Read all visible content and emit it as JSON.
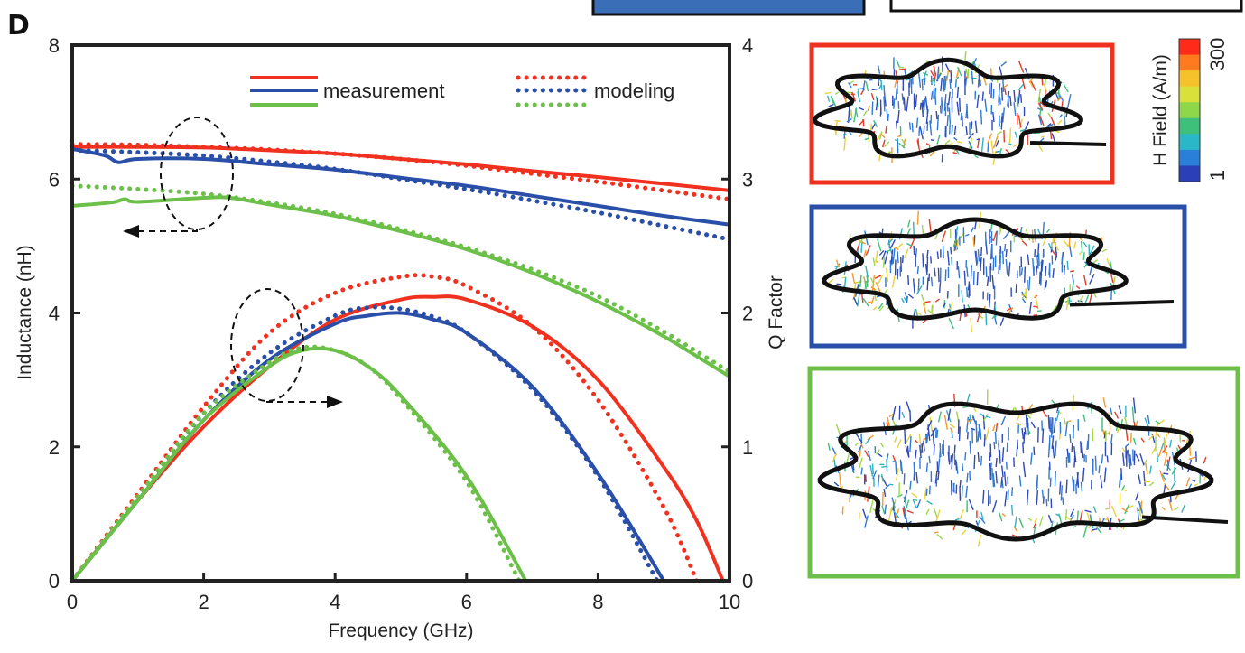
{
  "panel_label": "D",
  "colors": {
    "red": "#f1311f",
    "blue": "#2a4fa8",
    "green": "#6cc04a",
    "axis": "#222222"
  },
  "legend": {
    "measurement": "measurement",
    "modeling": "modeling"
  },
  "colorbar": {
    "label": "H Field (A/m)",
    "max_label": "300",
    "min_label": "1",
    "colors": [
      "#ff2a1a",
      "#ff7a1f",
      "#f5c22b",
      "#d9e03a",
      "#8ed64a",
      "#3fc07a",
      "#2ab8c8",
      "#2a7fd8",
      "#2a3fb8"
    ]
  },
  "chart_data": {
    "type": "line",
    "xlabel": "Frequency (GHz)",
    "ylabel_left": "Inductance (nH)",
    "ylabel_right": "Q Factor",
    "xlim": [
      0,
      10
    ],
    "ylim_left": [
      0,
      8
    ],
    "ylim_right": [
      0,
      4
    ],
    "x_ticks": [
      "0",
      "2",
      "4",
      "6",
      "8",
      "10"
    ],
    "y_left_ticks": [
      "0",
      "2",
      "4",
      "6",
      "8"
    ],
    "y_right_ticks": [
      "0",
      "1",
      "2",
      "3",
      "4"
    ],
    "grid": false,
    "legend_position": "top",
    "series": [
      {
        "axis": "left",
        "color": "red",
        "style": "solid",
        "x": [
          0,
          1,
          2,
          3,
          4,
          5,
          6,
          7,
          8,
          9,
          10
        ],
        "y": [
          6.48,
          6.48,
          6.47,
          6.43,
          6.38,
          6.3,
          6.22,
          6.12,
          6.03,
          5.93,
          5.83
        ]
      },
      {
        "axis": "left",
        "color": "red",
        "style": "dotted",
        "x": [
          0,
          1,
          2,
          3,
          4,
          5,
          6,
          7,
          8,
          9,
          10
        ],
        "y": [
          6.52,
          6.51,
          6.48,
          6.44,
          6.38,
          6.3,
          6.2,
          6.08,
          5.96,
          5.83,
          5.7
        ]
      },
      {
        "axis": "left",
        "color": "blue",
        "style": "solid",
        "x": [
          0,
          0.5,
          0.7,
          1,
          2,
          3,
          4,
          5,
          6,
          7,
          8,
          9,
          10
        ],
        "y": [
          6.45,
          6.35,
          6.25,
          6.3,
          6.3,
          6.22,
          6.14,
          6.02,
          5.9,
          5.75,
          5.6,
          5.45,
          5.32
        ]
      },
      {
        "axis": "left",
        "color": "blue",
        "style": "dotted",
        "x": [
          0,
          1,
          2,
          3,
          4,
          5,
          6,
          7,
          8,
          9,
          10
        ],
        "y": [
          6.43,
          6.4,
          6.35,
          6.26,
          6.15,
          6.0,
          5.85,
          5.68,
          5.5,
          5.3,
          5.1
        ]
      },
      {
        "axis": "left",
        "color": "green",
        "style": "solid",
        "x": [
          0,
          0.6,
          0.8,
          1,
          2,
          2.4,
          3,
          4,
          5,
          6,
          7,
          8,
          9,
          10
        ],
        "y": [
          5.6,
          5.65,
          5.7,
          5.66,
          5.72,
          5.72,
          5.62,
          5.45,
          5.22,
          4.95,
          4.6,
          4.17,
          3.65,
          3.05
        ]
      },
      {
        "axis": "left",
        "color": "green",
        "style": "dotted",
        "x": [
          0,
          1,
          2,
          3,
          4,
          5,
          6,
          7,
          8,
          9,
          10
        ],
        "y": [
          5.9,
          5.85,
          5.78,
          5.65,
          5.48,
          5.25,
          4.98,
          4.65,
          4.25,
          3.72,
          3.12
        ]
      },
      {
        "axis": "right",
        "color": "red",
        "style": "solid",
        "x": [
          0,
          1,
          2,
          3,
          4,
          5,
          5.5,
          6,
          7,
          8,
          9,
          9.5,
          9.9
        ],
        "y": [
          0,
          0.6,
          1.15,
          1.6,
          1.95,
          2.1,
          2.12,
          2.1,
          1.9,
          1.5,
          0.85,
          0.45,
          0
        ]
      },
      {
        "axis": "right",
        "color": "red",
        "style": "dotted",
        "x": [
          0,
          1,
          2,
          3,
          4,
          5,
          5.5,
          6,
          7,
          8,
          9,
          9.5
        ],
        "y": [
          0,
          0.65,
          1.3,
          1.85,
          2.15,
          2.27,
          2.27,
          2.2,
          1.9,
          1.35,
          0.55,
          0
        ]
      },
      {
        "axis": "right",
        "color": "blue",
        "style": "solid",
        "x": [
          0,
          1,
          2,
          3,
          4,
          4.5,
          5,
          5.5,
          6,
          7,
          8,
          9
        ],
        "y": [
          0,
          0.6,
          1.2,
          1.65,
          1.92,
          1.98,
          2.0,
          1.95,
          1.85,
          1.45,
          0.8,
          0
        ]
      },
      {
        "axis": "right",
        "color": "blue",
        "style": "dotted",
        "x": [
          0,
          1,
          2,
          3,
          4,
          4.5,
          5,
          5.5,
          6,
          7,
          8,
          8.9
        ],
        "y": [
          0,
          0.62,
          1.25,
          1.7,
          1.98,
          2.04,
          2.03,
          1.97,
          1.85,
          1.43,
          0.78,
          0
        ]
      },
      {
        "axis": "right",
        "color": "green",
        "style": "solid",
        "x": [
          0,
          1,
          2,
          3,
          3.5,
          4,
          4.5,
          5,
          6,
          6.9
        ],
        "y": [
          0,
          0.6,
          1.2,
          1.6,
          1.72,
          1.72,
          1.6,
          1.38,
          0.78,
          0
        ]
      },
      {
        "axis": "right",
        "color": "green",
        "style": "dotted",
        "x": [
          0,
          1,
          2,
          3,
          3.5,
          4,
          4.5,
          5,
          6,
          6.8
        ],
        "y": [
          0,
          0.63,
          1.25,
          1.63,
          1.74,
          1.72,
          1.6,
          1.36,
          0.74,
          0
        ]
      }
    ]
  }
}
